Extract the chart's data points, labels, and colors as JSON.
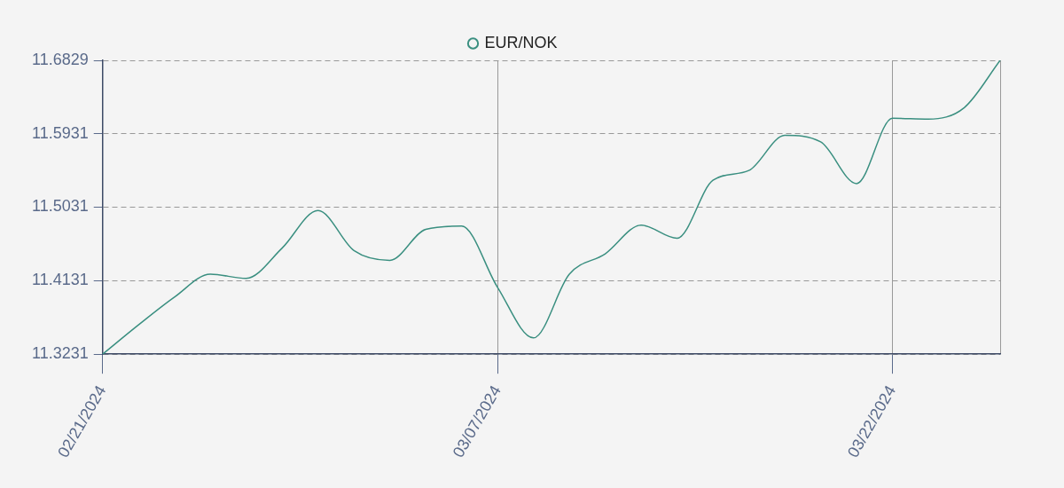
{
  "chart_data": {
    "type": "line",
    "categories": [
      "02/21/2024",
      null,
      null,
      null,
      null,
      null,
      null,
      null,
      null,
      null,
      null,
      "03/07/2024",
      null,
      null,
      null,
      null,
      null,
      null,
      null,
      null,
      null,
      null,
      "03/22/2024",
      null,
      null,
      null
    ],
    "series": [
      {
        "name": "EUR/NOK",
        "color": "#3a8f80",
        "values": [
          11.3231,
          11.359,
          11.393,
          11.421,
          11.416,
          11.453,
          11.499,
          11.45,
          11.438,
          11.476,
          11.48,
          11.405,
          11.343,
          11.421,
          11.446,
          11.481,
          11.465,
          11.536,
          11.548,
          11.591,
          11.583,
          11.532,
          11.612,
          11.611,
          11.625,
          11.6829
        ]
      }
    ],
    "ylim": [
      11.3231,
      11.6829
    ],
    "yticks": [
      11.3231,
      11.4131,
      11.5031,
      11.5931,
      11.6829
    ],
    "grid": true,
    "legend": "top",
    "marker": "none",
    "line_style": "solid"
  }
}
